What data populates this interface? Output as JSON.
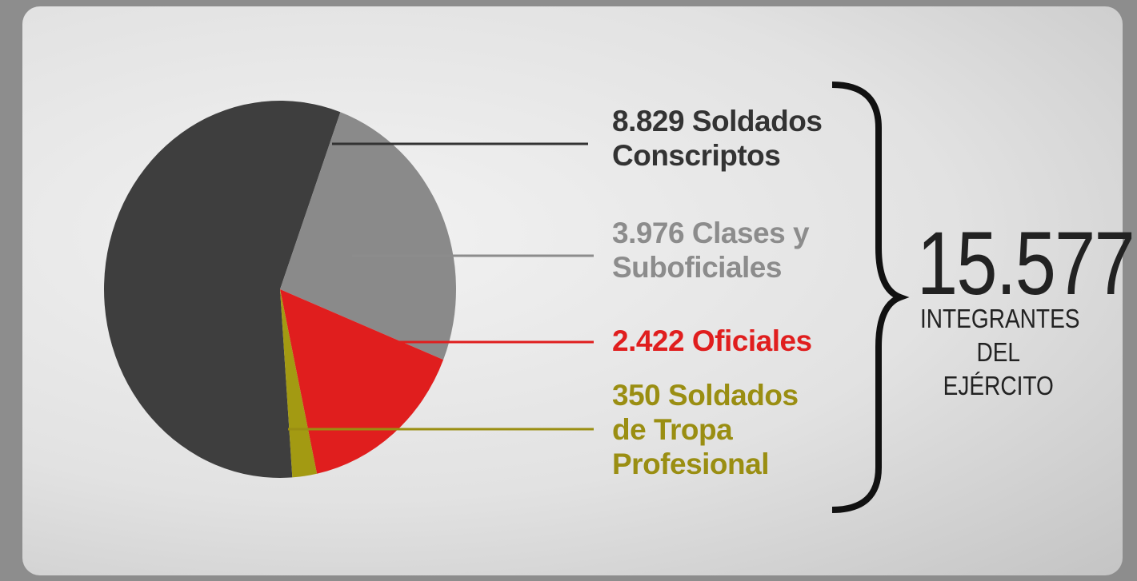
{
  "chart_data": {
    "type": "pie",
    "categories": [
      "Soldados Conscriptos",
      "Clases y Suboficiales",
      "Oficiales",
      "Soldados de Tropa Profesional"
    ],
    "values": [
      8829,
      3976,
      2422,
      350
    ],
    "value_labels": [
      "8.829",
      "3.976",
      "2.422",
      "350"
    ],
    "colors": [
      "#3e3e3e",
      "#8a8a8a",
      "#e01e1e",
      "#a39a12"
    ],
    "label_colors": [
      "#333333",
      "#8c8c8c",
      "#e01e1e",
      "#9a8e12"
    ],
    "total": "15.577",
    "total_caption": "INTEGRANTES DEL EJÉRCITO"
  }
}
